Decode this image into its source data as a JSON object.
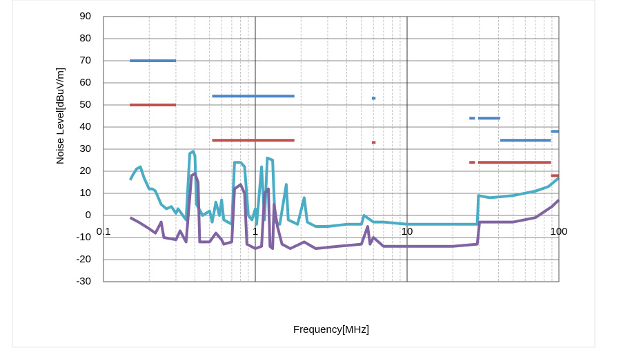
{
  "chart_data": {
    "type": "line",
    "x_label": "Frequency[MHz]",
    "y_label": "Noise Level[dBuV/m]",
    "log_x": true,
    "grid": true,
    "xlim": [
      0.1,
      100
    ],
    "xticks": [
      0.1,
      1,
      10,
      100
    ],
    "ylim": [
      -30,
      90
    ],
    "yticks": [
      -30,
      -20,
      -10,
      0,
      10,
      20,
      30,
      40,
      50,
      60,
      70,
      80,
      90
    ],
    "series": [
      {
        "color": "#4a86c8",
        "x": [
          0.149,
          0.3,
          null,
          0.52,
          1.81,
          null,
          5.86,
          6.2,
          null,
          25.7,
          28,
          null,
          29.4,
          41.1,
          null,
          41.1,
          88.7,
          null,
          88.7,
          100
        ],
        "values": [
          70,
          70,
          null,
          54,
          54,
          null,
          53,
          53,
          null,
          44,
          44,
          null,
          44,
          44,
          null,
          34,
          34,
          null,
          38,
          38
        ]
      },
      {
        "color": "#c0504d",
        "x": [
          0.149,
          0.3,
          null,
          0.52,
          1.81,
          null,
          5.86,
          6.2,
          null,
          25.7,
          28,
          null,
          29.4,
          88.7,
          null,
          88.7,
          100
        ],
        "values": [
          50,
          50,
          null,
          34,
          34,
          null,
          33,
          33,
          null,
          24,
          24,
          null,
          24,
          24,
          null,
          18,
          18
        ]
      },
      {
        "color": "#4bacc6",
        "x": [
          0.15,
          0.155,
          0.165,
          0.175,
          0.185,
          0.2,
          0.21,
          0.22,
          0.24,
          0.26,
          0.28,
          0.3,
          0.31,
          0.35,
          0.37,
          0.39,
          0.4,
          0.41,
          0.45,
          0.5,
          0.52,
          0.55,
          0.58,
          0.6,
          0.62,
          0.7,
          0.73,
          0.8,
          0.85,
          0.9,
          0.95,
          1.0,
          1.02,
          1.1,
          1.15,
          1.2,
          1.3,
          1.35,
          1.45,
          1.6,
          1.65,
          1.9,
          2.1,
          2.2,
          2.5,
          3,
          4,
          5,
          5.2,
          6,
          7,
          10,
          15,
          20,
          25,
          29,
          29.5,
          35,
          50,
          70,
          85,
          100
        ],
        "values": [
          16,
          18,
          21,
          22,
          17,
          12,
          12,
          11,
          5,
          3,
          4,
          1,
          3,
          -2,
          28,
          29,
          27,
          5,
          0,
          2,
          -3,
          6,
          0,
          7,
          -2,
          -4,
          24,
          24,
          22,
          0,
          -2,
          3,
          -4,
          22,
          -2,
          26,
          25,
          -3,
          -4,
          14,
          -2,
          -4,
          8,
          -3,
          -5,
          -5,
          -4,
          -4,
          0,
          -3,
          -3,
          -4,
          -4,
          -4,
          -4,
          -4,
          9,
          8,
          9,
          11,
          13,
          17
        ]
      },
      {
        "color": "#8064a2",
        "x": [
          0.15,
          0.17,
          0.2,
          0.22,
          0.24,
          0.25,
          0.3,
          0.32,
          0.35,
          0.38,
          0.4,
          0.42,
          0.43,
          0.5,
          0.55,
          0.6,
          0.62,
          0.7,
          0.73,
          0.8,
          0.85,
          0.88,
          1.0,
          1.1,
          1.15,
          1.22,
          1.25,
          1.3,
          1.33,
          1.4,
          1.5,
          1.7,
          2.1,
          2.5,
          3.5,
          5,
          5.5,
          5.7,
          6,
          7,
          10,
          20,
          29,
          30,
          50,
          70,
          90,
          100
        ],
        "values": [
          -1,
          -3,
          -6,
          -8,
          -3,
          -10,
          -11,
          -7,
          -12,
          18,
          19,
          15,
          -12,
          -12,
          -8,
          -11,
          -13,
          -12,
          12,
          14,
          10,
          -13,
          -15,
          -14,
          10,
          12,
          -14,
          -15,
          5,
          -5,
          -13,
          -15,
          -12,
          -15,
          -14,
          -13,
          -5,
          -13,
          -10,
          -14,
          -14,
          -14,
          -13,
          -3,
          -3,
          -1,
          4,
          7
        ]
      }
    ]
  }
}
